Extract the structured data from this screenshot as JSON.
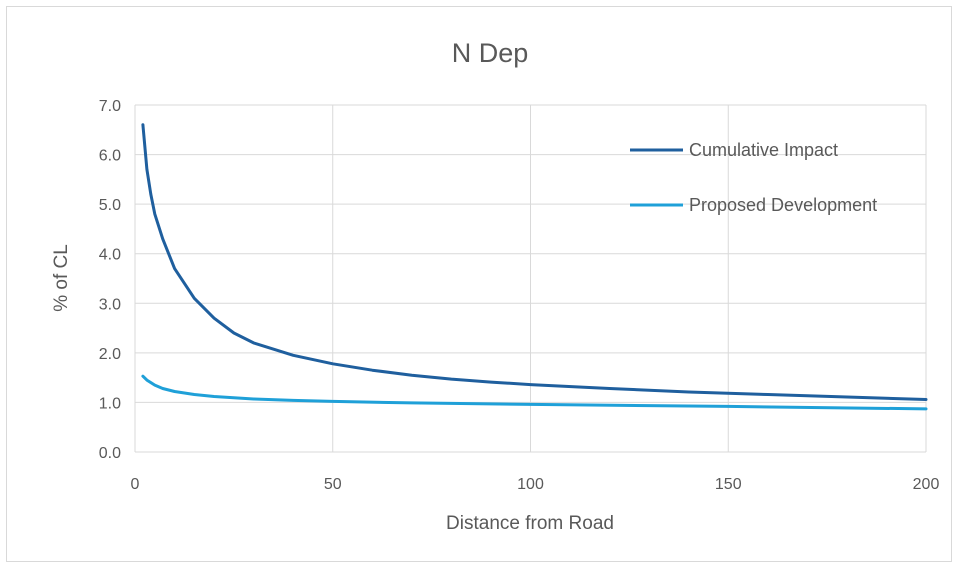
{
  "chart_data": {
    "type": "line",
    "title": "N Dep",
    "xlabel": "Distance from Road",
    "ylabel": "% of CL",
    "xlim": [
      0,
      200
    ],
    "ylim": [
      0,
      7
    ],
    "xticks": [
      "0",
      "50",
      "100",
      "150",
      "200"
    ],
    "yticks": [
      "0.0",
      "1.0",
      "2.0",
      "3.0",
      "4.0",
      "5.0",
      "6.0",
      "7.0"
    ],
    "grid": true,
    "legend_position": "top-right",
    "series": [
      {
        "name": "Cumulative Impact",
        "color": "#1f5f9e",
        "x": [
          2,
          3,
          4,
          5,
          7,
          10,
          15,
          20,
          25,
          30,
          40,
          50,
          60,
          70,
          80,
          90,
          100,
          120,
          140,
          160,
          180,
          200
        ],
        "y": [
          6.6,
          5.7,
          5.2,
          4.8,
          4.3,
          3.7,
          3.1,
          2.7,
          2.4,
          2.2,
          1.95,
          1.78,
          1.65,
          1.55,
          1.47,
          1.41,
          1.36,
          1.28,
          1.21,
          1.16,
          1.11,
          1.06
        ]
      },
      {
        "name": "Proposed Development",
        "color": "#1fa0d8",
        "x": [
          2,
          3,
          5,
          7,
          10,
          15,
          20,
          30,
          40,
          50,
          70,
          100,
          150,
          200
        ],
        "y": [
          1.53,
          1.45,
          1.35,
          1.28,
          1.22,
          1.16,
          1.12,
          1.07,
          1.04,
          1.02,
          0.99,
          0.96,
          0.92,
          0.87
        ]
      }
    ]
  }
}
